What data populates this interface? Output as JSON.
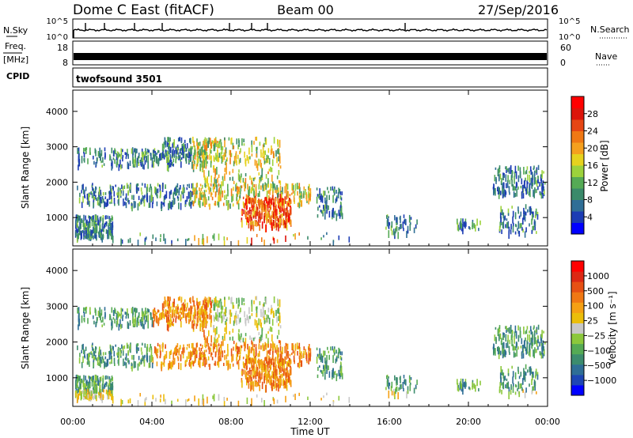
{
  "header": {
    "title": "Dome C East (fitACF)",
    "beam": "Beam 00",
    "date": "27/Sep/2016"
  },
  "noise_panel": {
    "left_label": "N.Sky",
    "right_label": "N.Search",
    "left_ticks": [
      "10^5",
      "10^0"
    ],
    "right_ticks": [
      "10^5",
      "10^0"
    ]
  },
  "freq_panel": {
    "left_label_top": "Freq.",
    "left_label_bottom": "[MHz]",
    "left_ticks": [
      "18",
      "8"
    ],
    "right_label": "Nave",
    "right_ticks": [
      "60",
      "0"
    ]
  },
  "cpid_panel": {
    "label": "CPID",
    "text": "twofsound 3501"
  },
  "chart_data": [
    {
      "type": "heatmap",
      "title": "",
      "ylabel": "Slant Range [km]",
      "xlabel": "",
      "yticks": [
        "1000",
        "2000",
        "3000",
        "4000"
      ],
      "xticks": [
        "00:00",
        "04:00",
        "08:00",
        "12:00",
        "16:00",
        "20:00",
        "00:00"
      ],
      "ylim": [
        200,
        4600
      ],
      "xlim": [
        0,
        24
      ],
      "colorbar": {
        "label": "Power [dB]",
        "ticks": [
          "4",
          "8",
          "12",
          "16",
          "20",
          "24",
          "28"
        ],
        "colors": [
          "#0000ff",
          "#1c3cb4",
          "#2f6e96",
          "#3a8a6a",
          "#55aa55",
          "#9cd23c",
          "#e6d21e",
          "#f5a01e",
          "#f07814",
          "#e64614",
          "#dc140a",
          "#ff0000"
        ]
      }
    },
    {
      "type": "heatmap",
      "title": "",
      "ylabel": "Slant Range [km]",
      "xlabel": "Time UT",
      "yticks": [
        "1000",
        "2000",
        "3000",
        "4000"
      ],
      "xticks": [
        "00:00",
        "04:00",
        "08:00",
        "12:00",
        "16:00",
        "20:00",
        "00:00"
      ],
      "ylim": [
        200,
        4600
      ],
      "xlim": [
        0,
        24
      ],
      "colorbar": {
        "label": "Velocity [m s⁻¹]",
        "ticks": [
          "1000",
          "500",
          "100",
          "25",
          "−25",
          "−100",
          "−500",
          "−1000"
        ],
        "colors": [
          "#0000ff",
          "#1e46b4",
          "#2f6e96",
          "#3c8c6e",
          "#55aa55",
          "#8cc83c",
          "#c8c8c8",
          "#ebbe0a",
          "#f5a014",
          "#f07814",
          "#e65014",
          "#dc2814",
          "#ff0000"
        ]
      }
    }
  ]
}
